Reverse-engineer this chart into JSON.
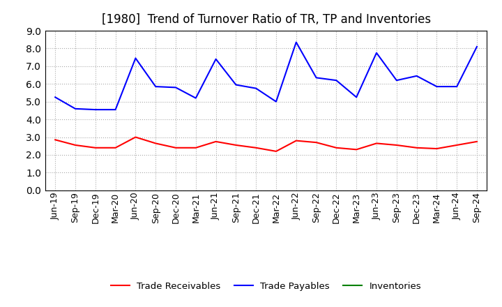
{
  "title": "[1980]  Trend of Turnover Ratio of TR, TP and Inventories",
  "x_labels": [
    "Jun-19",
    "Sep-19",
    "Dec-19",
    "Mar-20",
    "Jun-20",
    "Sep-20",
    "Dec-20",
    "Mar-21",
    "Jun-21",
    "Sep-21",
    "Dec-21",
    "Mar-22",
    "Jun-22",
    "Sep-22",
    "Dec-22",
    "Mar-23",
    "Jun-23",
    "Sep-23",
    "Dec-23",
    "Mar-24",
    "Jun-24",
    "Sep-24"
  ],
  "trade_receivables": [
    2.85,
    2.55,
    2.4,
    2.4,
    3.0,
    2.65,
    2.4,
    2.4,
    2.75,
    2.55,
    2.4,
    2.2,
    2.8,
    2.7,
    2.4,
    2.3,
    2.65,
    2.55,
    2.4,
    2.35,
    2.55,
    2.75
  ],
  "trade_payables": [
    5.25,
    4.6,
    4.55,
    4.55,
    7.45,
    5.85,
    5.8,
    5.2,
    7.4,
    5.95,
    5.75,
    5.0,
    8.35,
    6.35,
    6.2,
    5.25,
    7.75,
    6.2,
    6.45,
    5.85,
    5.85,
    8.1
  ],
  "tr_color": "#ff0000",
  "tp_color": "#0000ff",
  "inv_color": "#008000",
  "ylim": [
    0.0,
    9.0
  ],
  "yticks": [
    0.0,
    1.0,
    2.0,
    3.0,
    4.0,
    5.0,
    6.0,
    7.0,
    8.0,
    9.0
  ],
  "background_color": "#ffffff",
  "grid_color": "#aaaaaa",
  "title_fontsize": 12,
  "legend_labels": [
    "Trade Receivables",
    "Trade Payables",
    "Inventories"
  ],
  "tick_fontsize": 9,
  "ytick_fontsize": 10
}
